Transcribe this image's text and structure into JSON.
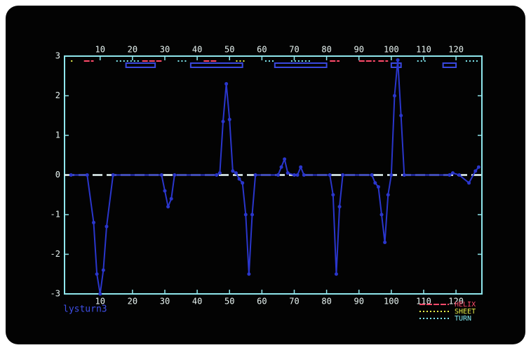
{
  "chart_data": {
    "type": "line",
    "title": "lysturn3",
    "x": [
      1,
      6,
      8,
      9,
      10,
      11,
      12,
      14,
      29,
      30,
      31,
      32,
      33,
      46,
      47,
      48,
      49,
      50,
      51,
      52,
      53,
      54,
      55,
      56,
      57,
      58,
      65,
      66,
      67,
      68,
      70,
      71,
      72,
      73,
      81,
      82,
      83,
      84,
      85,
      94,
      95,
      96,
      97,
      98,
      99,
      100,
      101,
      102,
      103,
      104,
      118,
      119,
      121,
      124,
      126,
      127
    ],
    "series": [
      {
        "color": "#2a36cc",
        "values": [
          0,
          0,
          -1.2,
          -2.5,
          -3,
          -2.4,
          -1.3,
          0,
          0,
          -0.4,
          -0.8,
          -0.6,
          0,
          0,
          0.05,
          1.35,
          2.3,
          1.4,
          0.1,
          0.05,
          -0.1,
          -0.2,
          -1,
          -2.5,
          -1,
          0,
          0,
          0.2,
          0.4,
          0.05,
          0,
          0,
          0.2,
          0,
          0,
          -0.5,
          -2.5,
          -0.8,
          0,
          0,
          -0.2,
          -0.3,
          -1,
          -1.7,
          -0.5,
          0,
          2,
          2.9,
          1.5,
          0,
          0,
          0.05,
          0,
          -0.2,
          0.1,
          0.2
        ]
      }
    ],
    "xlim": [
      -1,
      128
    ],
    "xticks": [
      10,
      20,
      30,
      40,
      50,
      60,
      70,
      80,
      90,
      100,
      110,
      120
    ],
    "ylim": [
      -3,
      3
    ],
    "yticks": [
      -3,
      -2,
      -1,
      0,
      1,
      2,
      3
    ],
    "structure": [
      {
        "name": "HELIX",
        "color": "#ff4a6a",
        "ranges": [
          [
            5,
            8
          ],
          [
            23,
            29
          ],
          [
            42,
            46
          ],
          [
            81,
            84
          ],
          [
            90,
            95
          ],
          [
            96,
            99
          ]
        ]
      },
      {
        "name": "SHEET",
        "color": "#e8f04a",
        "ranges": [
          [
            1,
            2
          ],
          [
            52,
            55
          ]
        ]
      },
      {
        "name": "TURN",
        "color": "#7fe8f0",
        "ranges": [
          [
            15,
            22
          ],
          [
            34,
            37
          ],
          [
            61,
            64
          ],
          [
            69,
            75
          ],
          [
            108,
            111
          ],
          [
            123,
            127
          ]
        ]
      }
    ],
    "boxes": {
      "color": "#3a48e0",
      "ranges": [
        [
          18,
          27
        ],
        [
          38,
          54
        ],
        [
          64,
          80
        ],
        [
          100,
          103
        ],
        [
          116,
          120
        ]
      ]
    }
  }
}
